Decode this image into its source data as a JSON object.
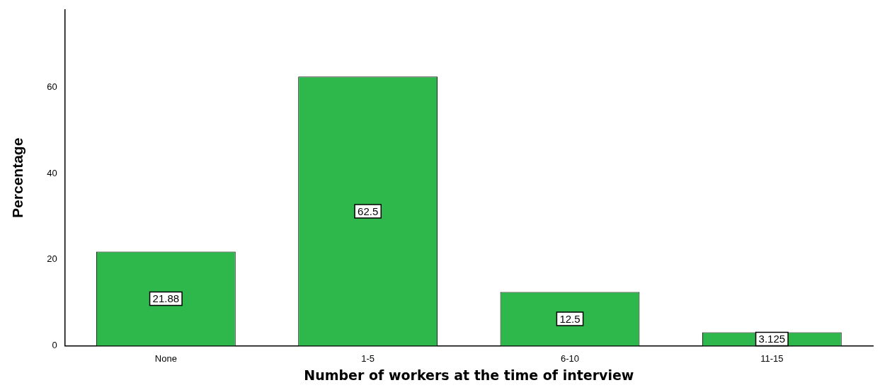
{
  "chart_data": {
    "type": "bar",
    "xlabel": "Number of workers at the time of interview",
    "ylabel": "Percentage",
    "categories": [
      "None",
      "1-5",
      "6-10",
      "11-15"
    ],
    "values": [
      21.88,
      62.5,
      12.5,
      3.125
    ],
    "color": "#2eb84b",
    "ylim": [
      0,
      78
    ],
    "yticks": [
      0,
      20,
      40,
      60
    ],
    "grid": false,
    "legend": false,
    "data_labels": true
  }
}
